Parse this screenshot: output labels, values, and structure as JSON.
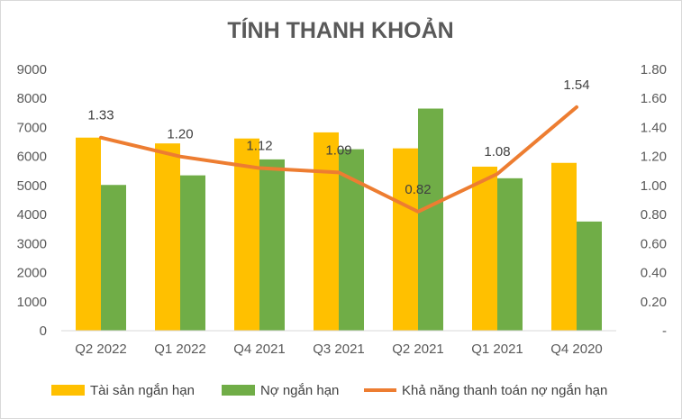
{
  "chart_data": {
    "type": "bar",
    "title": "TÍNH THANH KHOẢN",
    "categories": [
      "Q2 2022",
      "Q1 2022",
      "Q4 2021",
      "Q3 2021",
      "Q2 2021",
      "Q1 2021",
      "Q4 2020"
    ],
    "series": [
      {
        "name": "Tài sản ngắn hạn",
        "type": "bar",
        "axis": "left",
        "color": "#FFC000",
        "values": [
          6650,
          6450,
          6620,
          6830,
          6280,
          5650,
          5780
        ]
      },
      {
        "name": "Nợ ngắn hạn",
        "type": "bar",
        "axis": "left",
        "color": "#70AD47",
        "values": [
          5020,
          5350,
          5900,
          6250,
          7650,
          5250,
          3760
        ]
      },
      {
        "name": "Khả năng thanh toán nợ ngắn hạn",
        "type": "line",
        "axis": "right",
        "color": "#ED7D31",
        "values": [
          1.33,
          1.2,
          1.12,
          1.09,
          0.82,
          1.08,
          1.54
        ],
        "labels": [
          "1.33",
          "1.20",
          "1.12",
          "1.09",
          "0.82",
          "1.08",
          "1.54"
        ]
      }
    ],
    "y_left": {
      "min": 0,
      "max": 9000,
      "ticks": [
        "0",
        "1000",
        "2000",
        "3000",
        "4000",
        "5000",
        "6000",
        "7000",
        "8000",
        "9000"
      ]
    },
    "y_right": {
      "min": 0,
      "max": 1.8,
      "ticks": [
        "-",
        "0.20",
        "0.40",
        "0.60",
        "0.80",
        "1.00",
        "1.20",
        "1.40",
        "1.60",
        "1.80"
      ]
    },
    "grid": false,
    "legend": "bottom"
  }
}
